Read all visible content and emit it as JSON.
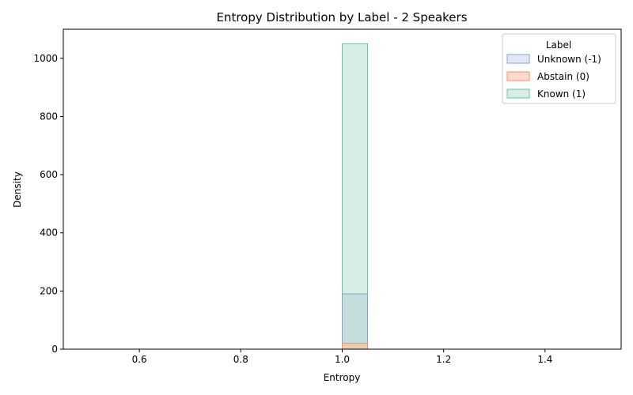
{
  "chart_data": {
    "type": "histogram",
    "title": "Entropy Distribution by Label - 2 Speakers",
    "xlabel": "Entropy",
    "ylabel": "Density",
    "xlim": [
      0.45,
      1.55
    ],
    "ylim": [
      0,
      1100
    ],
    "xticks": [
      0.6,
      0.8,
      1.0,
      1.2,
      1.4
    ],
    "xtick_labels": [
      "0.6",
      "0.8",
      "1.0",
      "1.2",
      "1.4"
    ],
    "yticks": [
      0,
      200,
      400,
      600,
      800,
      1000
    ],
    "ytick_labels": [
      "0",
      "200",
      "400",
      "600",
      "800",
      "1000"
    ],
    "baseline_range": [
      0.5,
      1.5
    ],
    "grid": false,
    "legend": {
      "title": "Label",
      "position": "top-right",
      "entries": [
        "Unknown (-1)",
        "Abstain (0)",
        "Known (1)"
      ]
    },
    "series": [
      {
        "name": "Known (1)",
        "bins": [
          {
            "x0": 1.0,
            "x1": 1.05,
            "value": 1050
          }
        ],
        "fill": "#d6eee6",
        "stroke": "#66c2a5"
      },
      {
        "name": "Unknown (-1)",
        "bins": [
          {
            "x0": 1.0,
            "x1": 1.05,
            "value": 190
          }
        ],
        "fill": "#c5dedd",
        "stroke": "#8da0cb"
      },
      {
        "name": "Abstain (0)",
        "bins": [
          {
            "x0": 1.0,
            "x1": 1.05,
            "value": 20
          }
        ],
        "fill": "#e6cfb8",
        "stroke": "#fc8d62"
      }
    ],
    "legend_colors": {
      "Unknown (-1)": {
        "fill": "#e3e7f4",
        "stroke": "#8da0cb"
      },
      "Abstain (0)": {
        "fill": "#fddccf",
        "stroke": "#fc8d62"
      },
      "Known (1)": {
        "fill": "#d6eee6",
        "stroke": "#66c2a5"
      }
    }
  }
}
